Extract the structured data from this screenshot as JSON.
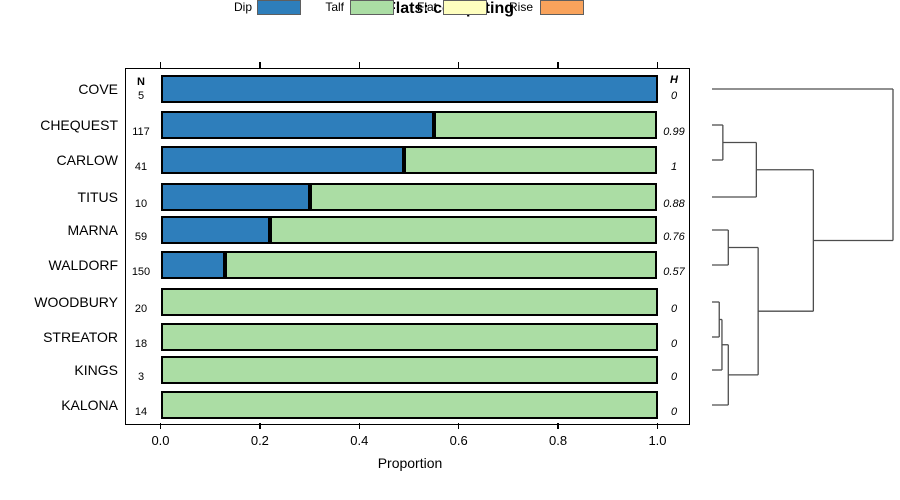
{
  "title": "Flats: competing",
  "legend": {
    "items": [
      {
        "label": "Dip",
        "color": "#2e7ebb"
      },
      {
        "label": "Talf",
        "color": "#abdda4"
      },
      {
        "label": "Flat",
        "color": "#ffffbf"
      },
      {
        "label": "Rise",
        "color": "#f9a35c"
      }
    ]
  },
  "chart_data": {
    "type": "bar",
    "orientation": "horizontal",
    "stacked": true,
    "title": "Flats: competing",
    "xlabel": "Proportion",
    "xlim": [
      0,
      1
    ],
    "xticks": [
      0.0,
      0.2,
      0.4,
      0.6,
      0.8,
      1.0
    ],
    "xtick_labels": [
      "0.0",
      "0.2",
      "0.4",
      "0.6",
      "0.8",
      "1.0"
    ],
    "categories": [
      "COVE",
      "CHEQUEST",
      "CARLOW",
      "TITUS",
      "MARNA",
      "WALDORF",
      "WOODBURY",
      "STREATOR",
      "KINGS",
      "KALONA"
    ],
    "n_header": "N",
    "h_header": "H",
    "n_values": [
      5,
      117,
      41,
      10,
      59,
      150,
      20,
      18,
      3,
      14
    ],
    "h_values": [
      "0",
      "0.99",
      "1",
      "0.88",
      "0.76",
      "0.57",
      "0",
      "0",
      "0",
      "0"
    ],
    "series": [
      {
        "name": "Dip",
        "color": "#2e7ebb",
        "values": [
          1.0,
          0.55,
          0.49,
          0.3,
          0.22,
          0.13,
          0,
          0,
          0,
          0
        ]
      },
      {
        "name": "Talf",
        "color": "#abdda4",
        "values": [
          0,
          0.45,
          0.51,
          0.7,
          0.78,
          0.87,
          1.0,
          1.0,
          1.0,
          1.0
        ]
      },
      {
        "name": "Flat",
        "color": "#ffffbf",
        "values": [
          0,
          0,
          0,
          0,
          0,
          0,
          0,
          0,
          0,
          0
        ]
      },
      {
        "name": "Rise",
        "color": "#f9a35c",
        "values": [
          0,
          0,
          0,
          0,
          0,
          0,
          0,
          0,
          0,
          0
        ]
      }
    ],
    "legend_position": "top",
    "grid": false
  },
  "dendrogram": {
    "leaves": [
      "COVE",
      "CHEQUEST",
      "CARLOW",
      "TITUS",
      "MARNA",
      "WALDORF",
      "WOODBURY",
      "STREATOR",
      "KINGS",
      "KALONA"
    ],
    "merges": [
      {
        "id": "m1",
        "children": [
          "WOODBURY",
          "STREATOR"
        ],
        "height": 0.04
      },
      {
        "id": "m2",
        "children": [
          "m1",
          "KINGS"
        ],
        "height": 0.055
      },
      {
        "id": "m3",
        "children": [
          "m2",
          "KALONA"
        ],
        "height": 0.09
      },
      {
        "id": "m4",
        "children": [
          "MARNA",
          "WALDORF"
        ],
        "height": 0.09
      },
      {
        "id": "m5",
        "children": [
          "CHEQUEST",
          "CARLOW"
        ],
        "height": 0.06
      },
      {
        "id": "m6",
        "children": [
          "m5",
          "TITUS"
        ],
        "height": 0.245
      },
      {
        "id": "m7",
        "children": [
          "m4",
          "m3"
        ],
        "height": 0.255
      },
      {
        "id": "m8",
        "children": [
          "m6",
          "m7"
        ],
        "height": 0.56
      },
      {
        "id": "m9",
        "children": [
          "COVE",
          "m8"
        ],
        "height": 1.0
      }
    ]
  }
}
